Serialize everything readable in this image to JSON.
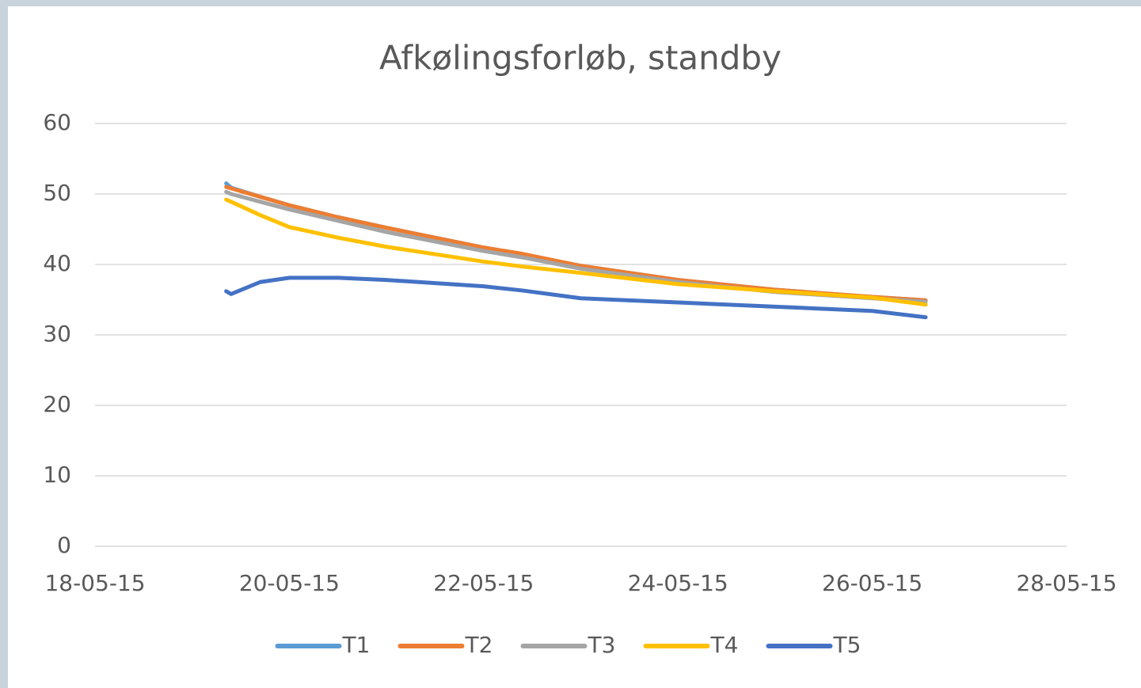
{
  "chart_data": {
    "type": "line",
    "title": "Afkølingsforløb, standby",
    "x": [
      42143.35,
      42143.4,
      42143.7,
      42144,
      42144.5,
      42145,
      42146,
      42146.4,
      42147,
      42148,
      42149,
      42150,
      42150.55
    ],
    "series": [
      {
        "name": "T1",
        "color": "#5b9bd5",
        "values": [
          51.5,
          50.9,
          49.6,
          48.4,
          46.7,
          45.2,
          42.4,
          41.4,
          39.8,
          37.8,
          36.4,
          35.4,
          34.9
        ]
      },
      {
        "name": "T2",
        "color": "#ed7d31",
        "values": [
          51,
          50.8,
          49.6,
          48.4,
          46.7,
          45.2,
          42.4,
          41.5,
          39.8,
          37.8,
          36.4,
          35.4,
          34.9
        ]
      },
      {
        "name": "T3",
        "color": "#a5a5a5",
        "values": [
          50.3,
          50.0,
          48.9,
          47.8,
          46.2,
          44.6,
          41.9,
          41.0,
          39.4,
          37.5,
          36.1,
          35.2,
          34.7
        ]
      },
      {
        "name": "T4",
        "color": "#ffc000",
        "values": [
          49.2,
          48.9,
          47.0,
          45.3,
          43.8,
          42.5,
          40.4,
          39.7,
          38.8,
          37.2,
          36.2,
          35.3,
          34.3
        ]
      },
      {
        "name": "T5",
        "color": "#4472c4",
        "values": [
          36.2,
          35.8,
          37.5,
          38.1,
          38.1,
          37.8,
          36.9,
          36.3,
          35.2,
          34.6,
          34.0,
          33.4,
          32.5
        ]
      }
    ],
    "xlim": [
      42142,
      42152
    ],
    "xticks": [
      {
        "value": 42142,
        "label": "18-05-15"
      },
      {
        "value": 42144,
        "label": "20-05-15"
      },
      {
        "value": 42146,
        "label": "22-05-15"
      },
      {
        "value": 42148,
        "label": "24-05-15"
      },
      {
        "value": 42150,
        "label": "26-05-15"
      },
      {
        "value": 42152,
        "label": "28-05-15"
      }
    ],
    "ylim": [
      0,
      60
    ],
    "yticks": [
      0,
      10,
      20,
      30,
      40,
      50,
      60
    ],
    "grid": true,
    "legend": "bottom"
  }
}
